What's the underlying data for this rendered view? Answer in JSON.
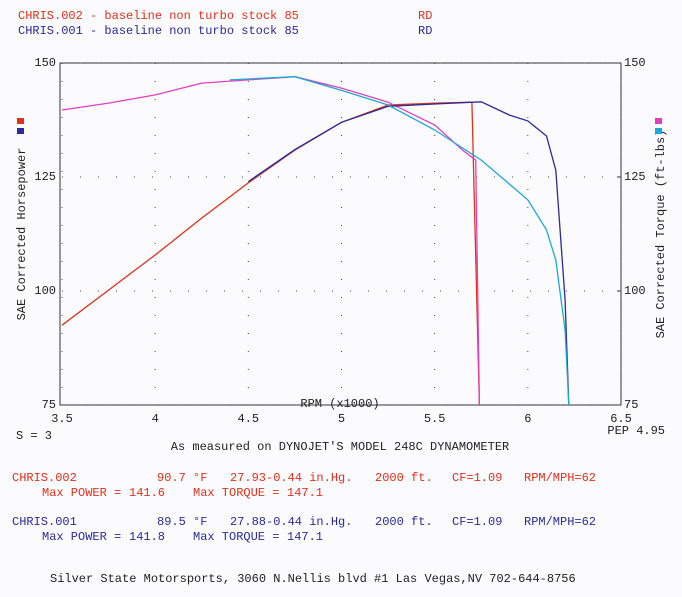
{
  "chart_data": {
    "type": "line",
    "header": [
      {
        "text": "CHRIS.002 - baseline non turbo stock 85",
        "tag": "RD",
        "color": "#e0301e"
      },
      {
        "text": "CHRIS.001 - baseline non turbo stock 85",
        "tag": "RD",
        "color": "#2a2a9a"
      }
    ],
    "x_label": "RPM (x1000)",
    "y_label": "SAE Corrected Horsepower",
    "y2_label": "SAE Corrected Torque (ft-lbs)",
    "smoothing": "S = 3",
    "pep": "PEP 4.95",
    "subtitle": "As measured on DYNOJET'S MODEL 248C DYNAMOMETER",
    "xlim": [
      3.5,
      6.5
    ],
    "xticks": [
      3.5,
      4.0,
      4.5,
      5.0,
      5.5,
      6.0,
      6.5
    ],
    "ylim": [
      75,
      150
    ],
    "yticks": [
      75,
      100,
      125,
      150
    ],
    "y2lim": [
      75,
      150
    ],
    "y2ticks": [
      75,
      100,
      125,
      150
    ],
    "grid": true,
    "series": [
      {
        "color": "#e0301e",
        "x": [
          3.5,
          3.75,
          4.0,
          4.25,
          4.5,
          4.75,
          5.0,
          5.25,
          5.5,
          5.7,
          5.74
        ],
        "values": [
          92.5,
          100.2,
          107.9,
          116,
          123.7,
          130.9,
          137,
          140.8,
          141.2,
          141.4,
          75
        ]
      },
      {
        "color": "#e040c0",
        "axis": "y2",
        "x": [
          3.5,
          3.75,
          4.0,
          4.25,
          4.5,
          4.75,
          5.0,
          5.25,
          5.5,
          5.65,
          5.72,
          5.74
        ],
        "values": [
          139.7,
          141.2,
          143,
          145.6,
          146.3,
          147,
          144.5,
          141.4,
          136.4,
          130.9,
          128.7,
          75
        ]
      },
      {
        "color": "#2a2a9a",
        "x": [
          4.5,
          4.75,
          5.0,
          5.25,
          5.5,
          5.75,
          5.9,
          6.0,
          6.1,
          6.15,
          6.2,
          6.22
        ],
        "values": [
          124,
          131,
          137,
          140.5,
          141,
          141.5,
          138.6,
          137.3,
          134,
          126.5,
          98,
          75
        ]
      },
      {
        "color": "#20a8d0",
        "axis": "y2",
        "x": [
          4.4,
          4.75,
          5.0,
          5.25,
          5.5,
          5.75,
          6.0,
          6.1,
          6.15,
          6.2,
          6.22
        ],
        "values": [
          146.3,
          147,
          144,
          140.8,
          135.3,
          128.7,
          120,
          113.4,
          106.8,
          91.4,
          75
        ]
      }
    ],
    "runs": [
      {
        "name": "CHRIS.002",
        "color": "#e0301e",
        "temperature": "90.7 °F",
        "pressure": "27.93-0.44 in.Hg.",
        "altitude": "2000 ft.",
        "cf": "CF=1.09",
        "ratio": "RPM/MPH=62",
        "power_label": "Max POWER =",
        "max_power": 141.6,
        "torque_label": "Max TORQUE =",
        "max_torque": 147.1
      },
      {
        "name": "CHRIS.001",
        "color": "#2a2a9a",
        "temperature": "89.5 °F",
        "pressure": "27.88-0.44 in.Hg.",
        "altitude": "2000 ft.",
        "cf": "CF=1.09",
        "ratio": "RPM/MPH=62",
        "power_label": "Max POWER =",
        "max_power": 141.8,
        "torque_label": "Max TORQUE =",
        "max_torque": 147.1
      }
    ],
    "footer": "Silver State Motorsports, 3060 N.Nellis blvd #1 Las Vegas,NV 702-644-8756"
  }
}
